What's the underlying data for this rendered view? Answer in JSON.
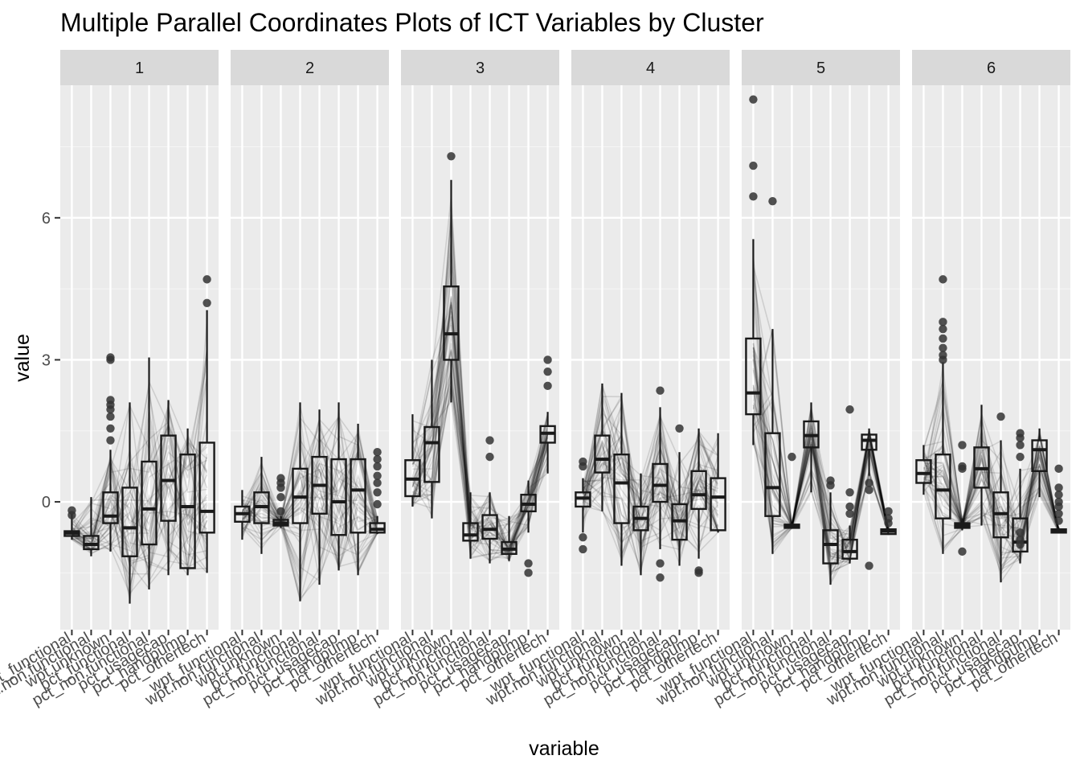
{
  "chart_data": {
    "type": "parallel-coordinates-boxplot",
    "title": "Multiple Parallel Coordinates Plots of ICT Variables by Cluster",
    "xlabel": "variable",
    "ylabel": "value",
    "ylim": [
      -2.7,
      8.8
    ],
    "y_ticks": [
      0,
      3,
      6
    ],
    "y_tick_labels": [
      "0",
      "3",
      "6"
    ],
    "variables": [
      "wpt_functional",
      "wpt.non.functional",
      "wpt.unknown",
      "pct_functional",
      "pct_non.functional",
      "pct_usagecap",
      "pct_handpump",
      "pct_othertech"
    ],
    "panels": [
      {
        "cluster": "1",
        "boxes": [
          {
            "q1": -0.72,
            "median": -0.66,
            "q3": -0.62,
            "lo": -0.8,
            "hi": -0.25,
            "outliers": [
              -0.18,
              -0.28
            ]
          },
          {
            "q1": -1.0,
            "median": -0.9,
            "q3": -0.72,
            "lo": -1.15,
            "hi": 0.1,
            "outliers": []
          },
          {
            "q1": -0.45,
            "median": -0.3,
            "q3": 0.2,
            "lo": -1.05,
            "hi": 1.1,
            "outliers": [
              1.3,
              1.55,
              1.8,
              1.95,
              2.05,
              2.15,
              3.0,
              3.05
            ]
          },
          {
            "q1": -1.15,
            "median": -0.55,
            "q3": 0.3,
            "lo": -2.15,
            "hi": 2.1,
            "outliers": []
          },
          {
            "q1": -0.9,
            "median": -0.15,
            "q3": 0.85,
            "lo": -1.85,
            "hi": 3.05,
            "outliers": []
          },
          {
            "q1": -0.4,
            "median": 0.45,
            "q3": 1.4,
            "lo": -1.55,
            "hi": 2.15,
            "outliers": []
          },
          {
            "q1": -1.4,
            "median": -0.1,
            "q3": 1.0,
            "lo": -1.55,
            "hi": 1.55,
            "outliers": []
          },
          {
            "q1": -0.65,
            "median": -0.2,
            "q3": 1.25,
            "lo": -1.5,
            "hi": 4.05,
            "outliers": [
              4.2,
              4.7
            ]
          }
        ]
      },
      {
        "cluster": "2",
        "boxes": [
          {
            "q1": -0.42,
            "median": -0.25,
            "q3": -0.1,
            "lo": -0.8,
            "hi": 0.25,
            "outliers": []
          },
          {
            "q1": -0.45,
            "median": -0.1,
            "q3": 0.2,
            "lo": -1.1,
            "hi": 0.95,
            "outliers": []
          },
          {
            "q1": -0.5,
            "median": -0.45,
            "q3": -0.38,
            "lo": -0.55,
            "hi": -0.3,
            "outliers": [
              -0.2,
              0.1,
              0.3,
              0.4,
              0.5
            ]
          },
          {
            "q1": -0.45,
            "median": 0.1,
            "q3": 0.7,
            "lo": -2.1,
            "hi": 2.1,
            "outliers": []
          },
          {
            "q1": -0.25,
            "median": 0.35,
            "q3": 0.95,
            "lo": -1.75,
            "hi": 1.95,
            "outliers": []
          },
          {
            "q1": -0.7,
            "median": 0.0,
            "q3": 0.9,
            "lo": -1.45,
            "hi": 2.1,
            "outliers": []
          },
          {
            "q1": -0.65,
            "median": 0.25,
            "q3": 0.9,
            "lo": -1.55,
            "hi": 1.65,
            "outliers": []
          },
          {
            "q1": -0.65,
            "median": -0.58,
            "q3": -0.45,
            "lo": -0.68,
            "hi": -0.3,
            "outliers": [
              -0.05,
              0.2,
              0.4,
              0.55,
              0.75,
              0.9,
              1.05
            ]
          }
        ]
      },
      {
        "cluster": "3",
        "boxes": [
          {
            "q1": 0.12,
            "median": 0.48,
            "q3": 0.88,
            "lo": -0.1,
            "hi": 1.85,
            "outliers": []
          },
          {
            "q1": 0.42,
            "median": 1.25,
            "q3": 1.58,
            "lo": -0.35,
            "hi": 3.0,
            "outliers": []
          },
          {
            "q1": 3.0,
            "median": 3.55,
            "q3": 4.55,
            "lo": 2.1,
            "hi": 6.8,
            "outliers": [
              7.3
            ]
          },
          {
            "q1": -0.82,
            "median": -0.7,
            "q3": -0.45,
            "lo": -1.2,
            "hi": 0.2,
            "outliers": []
          },
          {
            "q1": -0.78,
            "median": -0.58,
            "q3": -0.28,
            "lo": -1.3,
            "hi": 0.2,
            "outliers": [
              0.95,
              1.3
            ]
          },
          {
            "q1": -1.1,
            "median": -1.0,
            "q3": -0.85,
            "lo": -1.25,
            "hi": -0.3,
            "outliers": []
          },
          {
            "q1": -0.2,
            "median": -0.05,
            "q3": 0.15,
            "lo": -0.65,
            "hi": 0.45,
            "outliers": [
              -1.3,
              -1.5
            ]
          },
          {
            "q1": 1.25,
            "median": 1.45,
            "q3": 1.6,
            "lo": 0.6,
            "hi": 1.9,
            "outliers": [
              2.45,
              2.75,
              3.0
            ]
          }
        ]
      },
      {
        "cluster": "4",
        "boxes": [
          {
            "q1": -0.1,
            "median": 0.08,
            "q3": 0.2,
            "lo": -0.65,
            "hi": 0.5,
            "outliers": [
              0.75,
              0.85,
              -0.75,
              -1.0
            ]
          },
          {
            "q1": 0.62,
            "median": 0.9,
            "q3": 1.4,
            "lo": -0.2,
            "hi": 2.5,
            "outliers": []
          },
          {
            "q1": -0.45,
            "median": 0.4,
            "q3": 1.0,
            "lo": -1.35,
            "hi": 2.3,
            "outliers": []
          },
          {
            "q1": -0.6,
            "median": -0.35,
            "q3": -0.1,
            "lo": -1.55,
            "hi": 0.6,
            "outliers": []
          },
          {
            "q1": 0.0,
            "median": 0.35,
            "q3": 0.8,
            "lo": -1.0,
            "hi": 2.0,
            "outliers": [
              2.35,
              -1.3,
              -1.6
            ]
          },
          {
            "q1": -0.8,
            "median": -0.4,
            "q3": -0.05,
            "lo": -1.35,
            "hi": 1.05,
            "outliers": [
              1.55
            ]
          },
          {
            "q1": -0.15,
            "median": 0.15,
            "q3": 0.65,
            "lo": -1.2,
            "hi": 1.55,
            "outliers": [
              -1.45,
              -1.5
            ]
          },
          {
            "q1": -0.6,
            "median": 0.1,
            "q3": 0.5,
            "lo": -0.65,
            "hi": 1.45,
            "outliers": []
          }
        ]
      },
      {
        "cluster": "5",
        "boxes": [
          {
            "q1": 1.85,
            "median": 2.3,
            "q3": 3.45,
            "lo": 1.2,
            "hi": 5.55,
            "outliers": [
              6.45,
              7.1,
              8.5
            ]
          },
          {
            "q1": -0.3,
            "median": 0.3,
            "q3": 1.45,
            "lo": -1.1,
            "hi": 3.65,
            "outliers": [
              6.35
            ]
          },
          {
            "q1": -0.55,
            "median": -0.5,
            "q3": -0.48,
            "lo": -0.55,
            "hi": -0.45,
            "outliers": [
              0.95
            ]
          },
          {
            "q1": 1.15,
            "median": 1.4,
            "q3": 1.7,
            "lo": 0.2,
            "hi": 2.1,
            "outliers": []
          },
          {
            "q1": -1.3,
            "median": -0.9,
            "q3": -0.6,
            "lo": -1.75,
            "hi": 0.2,
            "outliers": [
              0.35,
              0.45
            ]
          },
          {
            "q1": -1.2,
            "median": -1.05,
            "q3": -0.8,
            "lo": -1.3,
            "hi": -0.5,
            "outliers": [
              -0.25,
              -0.1,
              0.2,
              1.95
            ]
          },
          {
            "q1": 1.1,
            "median": 1.3,
            "q3": 1.42,
            "lo": 0.55,
            "hi": 1.55,
            "outliers": [
              0.25,
              0.4,
              -1.35
            ]
          },
          {
            "q1": -0.68,
            "median": -0.62,
            "q3": -0.58,
            "lo": -0.7,
            "hi": -0.55,
            "outliers": [
              -0.45,
              -0.35,
              -0.2
            ]
          }
        ]
      },
      {
        "cluster": "6",
        "boxes": [
          {
            "q1": 0.4,
            "median": 0.6,
            "q3": 0.88,
            "lo": 0.15,
            "hi": 1.2,
            "outliers": []
          },
          {
            "q1": -0.35,
            "median": 0.25,
            "q3": 1.0,
            "lo": -1.1,
            "hi": 2.95,
            "outliers": [
              3.0,
              3.1,
              3.25,
              3.45,
              3.65,
              3.8,
              4.7
            ]
          },
          {
            "q1": -0.55,
            "median": -0.5,
            "q3": -0.45,
            "lo": -0.6,
            "hi": -0.35,
            "outliers": [
              0.7,
              0.75,
              1.2,
              -1.05
            ]
          },
          {
            "q1": 0.3,
            "median": 0.7,
            "q3": 1.15,
            "lo": -0.5,
            "hi": 2.05,
            "outliers": []
          },
          {
            "q1": -0.75,
            "median": -0.25,
            "q3": 0.2,
            "lo": -1.7,
            "hi": 1.3,
            "outliers": [
              1.8
            ]
          },
          {
            "q1": -1.05,
            "median": -0.85,
            "q3": -0.35,
            "lo": -1.3,
            "hi": 0.7,
            "outliers": [
              0.95,
              1.2,
              1.35,
              1.45,
              -0.65,
              -0.8,
              -0.9
            ]
          },
          {
            "q1": 0.65,
            "median": 1.1,
            "q3": 1.3,
            "lo": 0.1,
            "hi": 1.55,
            "outliers": []
          },
          {
            "q1": -0.65,
            "median": -0.62,
            "q3": -0.58,
            "lo": -0.65,
            "hi": -0.55,
            "outliers": [
              -0.4,
              -0.25,
              -0.1,
              0.0,
              0.15,
              0.3,
              0.7
            ]
          }
        ]
      }
    ]
  }
}
